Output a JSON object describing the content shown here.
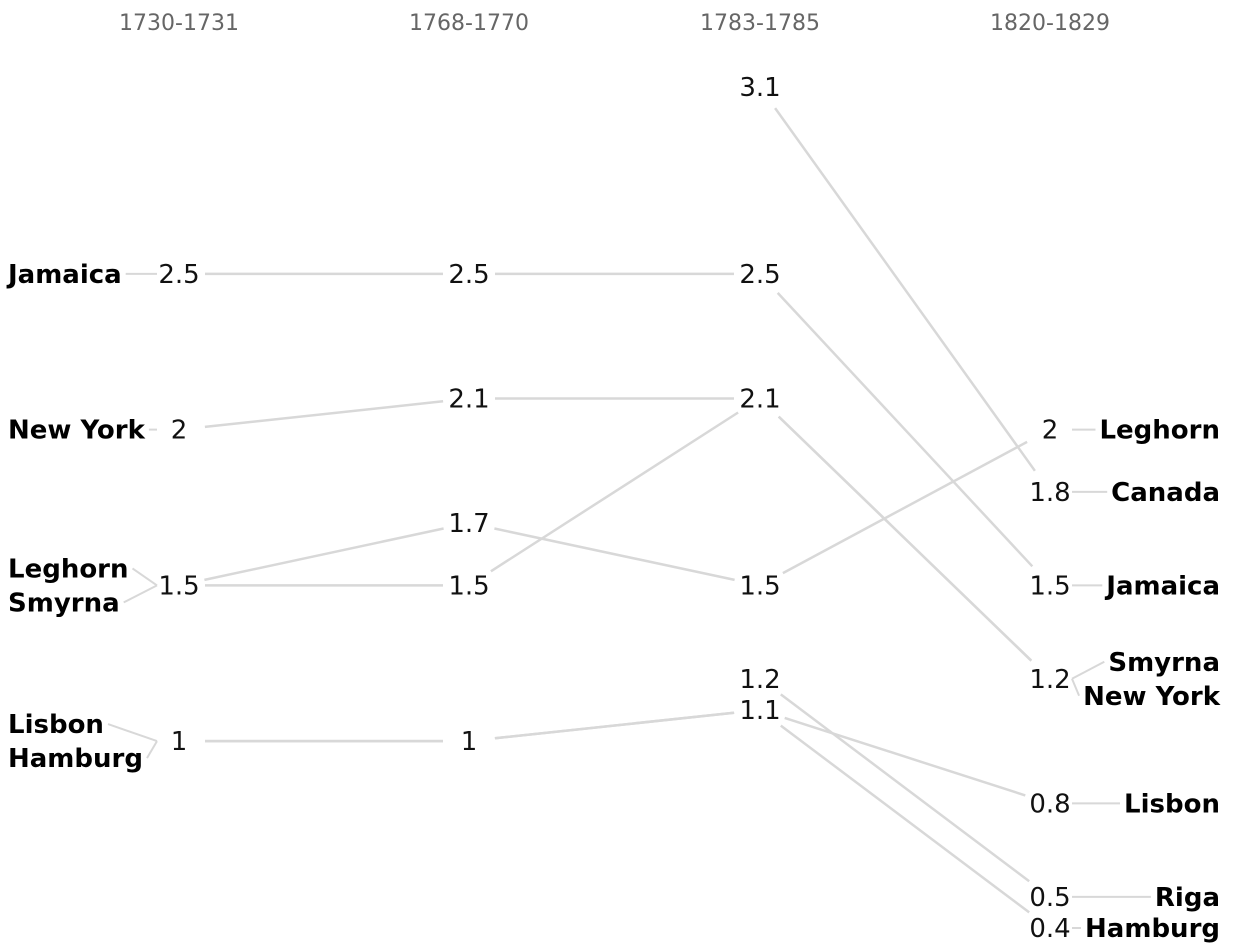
{
  "chart_data": {
    "type": "slopegraph",
    "periods": [
      "1730-1731",
      "1768-1770",
      "1783-1785",
      "1820-1829"
    ],
    "series": [
      {
        "name": "Jamaica",
        "values": [
          2.5,
          2.5,
          2.5,
          1.5
        ]
      },
      {
        "name": "New York",
        "values": [
          2,
          2.1,
          2.1,
          1.2
        ]
      },
      {
        "name": "Leghorn",
        "values": [
          1.5,
          1.7,
          1.5,
          2
        ]
      },
      {
        "name": "Smyrna",
        "values": [
          1.5,
          1.5,
          2.1,
          1.2
        ]
      },
      {
        "name": "Lisbon",
        "values": [
          1,
          1,
          1.1,
          0.8
        ]
      },
      {
        "name": "Hamburg",
        "values": [
          1,
          1,
          1.1,
          0.4
        ]
      },
      {
        "name": "Canada",
        "values": [
          null,
          null,
          3.1,
          1.8
        ]
      },
      {
        "name": "Riga",
        "values": [
          null,
          null,
          1.2,
          0.5
        ]
      }
    ],
    "left_labels": [
      {
        "value": 2.5,
        "names": [
          "Jamaica"
        ]
      },
      {
        "value": 2,
        "names": [
          "New York"
        ]
      },
      {
        "value": 1.5,
        "names": [
          "Leghorn",
          "Smyrna"
        ]
      },
      {
        "value": 1,
        "names": [
          "Lisbon",
          "Hamburg"
        ]
      }
    ],
    "right_labels": [
      {
        "value": 2,
        "names": [
          "Leghorn"
        ]
      },
      {
        "value": 1.8,
        "names": [
          "Canada"
        ]
      },
      {
        "value": 1.5,
        "names": [
          "Jamaica"
        ]
      },
      {
        "value": 1.2,
        "names": [
          "Smyrna",
          "New York"
        ]
      },
      {
        "value": 0.8,
        "names": [
          "Lisbon"
        ]
      },
      {
        "value": 0.5,
        "names": [
          "Riga"
        ]
      },
      {
        "value": 0.4,
        "names": [
          "Hamburg"
        ]
      }
    ],
    "value_labels": [
      {
        "period": 0,
        "values": [
          2.5,
          2,
          1.5,
          1
        ]
      },
      {
        "period": 1,
        "values": [
          2.5,
          2.1,
          1.7,
          1.5,
          1
        ]
      },
      {
        "period": 2,
        "values": [
          3.1,
          2.5,
          2.1,
          1.5,
          1.2,
          1.1
        ]
      },
      {
        "period": 3,
        "values": [
          2,
          1.8,
          1.5,
          1.2,
          0.8,
          0.5,
          0.4
        ]
      }
    ],
    "ylim": [
      0.4,
      3.1
    ],
    "line_color": "#d8d8d8"
  }
}
